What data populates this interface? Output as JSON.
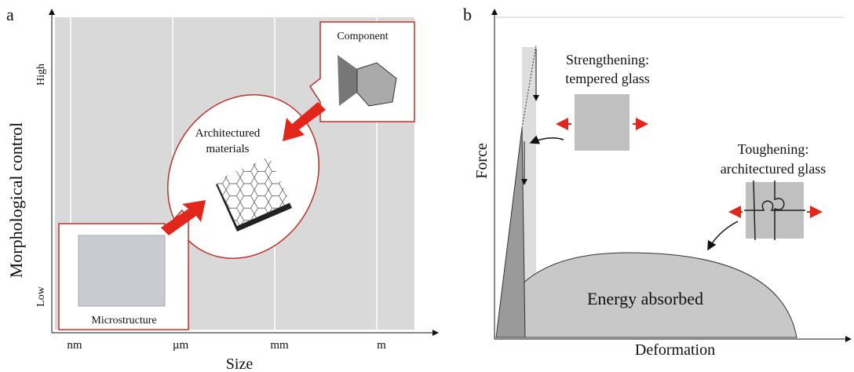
{
  "panel_a": {
    "label": "a",
    "y_axis_title": "Morphological  control",
    "y_levels": [
      "High",
      "Low"
    ],
    "x_axis_title": "Size",
    "x_ticks": [
      "nm",
      "µm",
      "mm",
      "m"
    ],
    "component": "Component",
    "architectured_materials": [
      "Architectured",
      "materials"
    ],
    "microstructure": "Microstructure"
  },
  "panel_b": {
    "label": "b",
    "y_axis_title": "Force",
    "x_axis_title": "Deformation",
    "strengthening": [
      "Strengthening:",
      "tempered glass"
    ],
    "toughening": [
      "Toughening:",
      "architectured glass"
    ],
    "energy": "Energy absorbed"
  }
}
